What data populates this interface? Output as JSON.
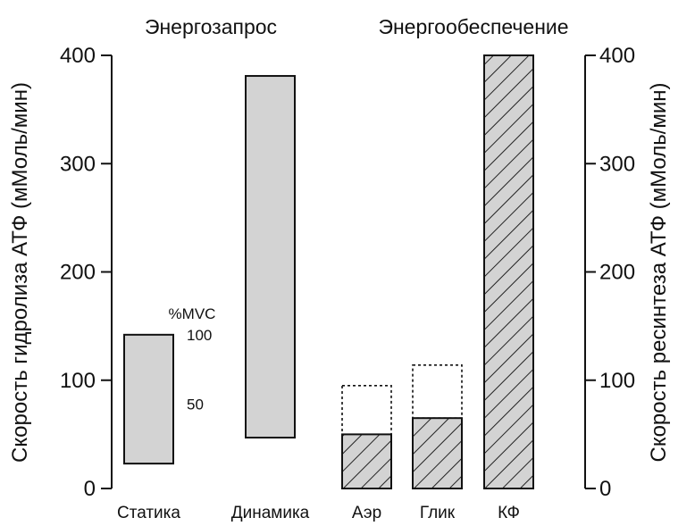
{
  "chart_data": {
    "type": "bar",
    "group_titles": [
      "Энергозапрос",
      "Энергообеспечение"
    ],
    "ylabel_left": "Скорость гидролиза АТФ (мМоль/мин)",
    "ylabel_right": "Скорость ресинтеза АТФ (мМоль/мин)",
    "ylim": [
      0,
      400
    ],
    "yticks": [
      "0",
      "100",
      "200",
      "300",
      "400"
    ],
    "categories": [
      "Статика",
      "Динамика",
      "Аэр",
      "Глик",
      "КФ"
    ],
    "demand": [
      {
        "category": "Статика",
        "low": 23,
        "high": 142
      },
      {
        "category": "Динамика",
        "low": 47,
        "high": 381
      }
    ],
    "supply": [
      {
        "category": "Аэр",
        "value": 50,
        "max": 95
      },
      {
        "category": "Глик",
        "value": 65,
        "max": 114
      },
      {
        "category": "КФ",
        "value": 400
      }
    ],
    "mvc_annotation": {
      "title": "%MVC",
      "marks": [
        {
          "label": "100",
          "value": 142
        },
        {
          "label": "50",
          "value": 78
        }
      ]
    },
    "colors": {
      "demand_fill": "#d3d3d3",
      "supply_fill": "#d3d3d3",
      "stroke": "#111111"
    }
  }
}
